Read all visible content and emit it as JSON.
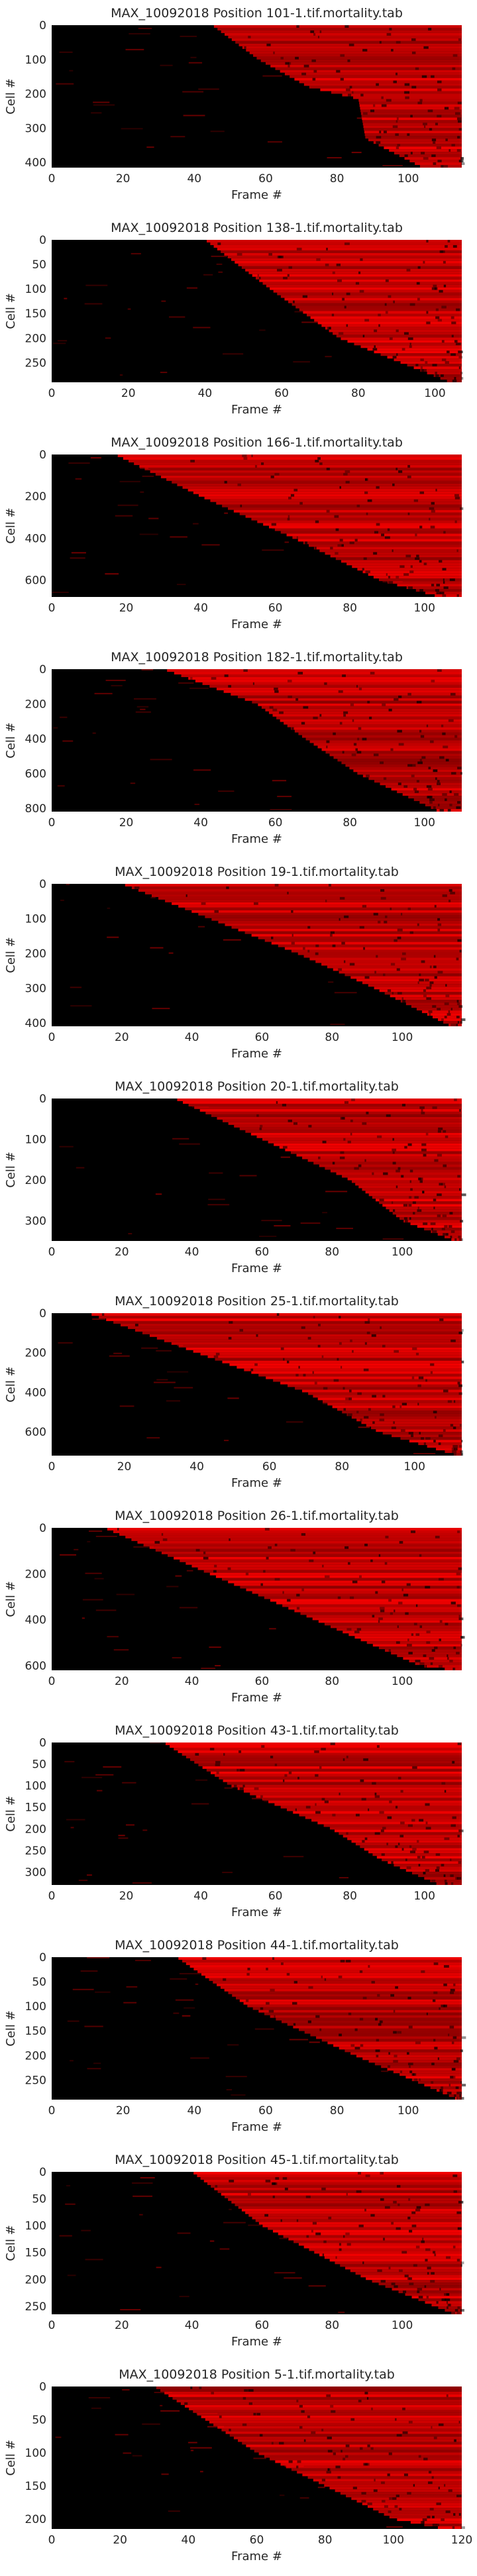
{
  "colors": {
    "background": "#000000",
    "signal": "#ff0000",
    "text": "#262626"
  },
  "chart_data": [
    {
      "type": "heatmap",
      "title": "MAX_10092018 Position 101-1.tif.mortality.tab",
      "xlabel": "Frame #",
      "ylabel": "Cell #",
      "xlim": [
        0,
        115
      ],
      "ylim": [
        415,
        0
      ],
      "x_ticks": [
        0,
        20,
        40,
        60,
        80,
        100
      ],
      "y_ticks": [
        0,
        100,
        200,
        300,
        400
      ],
      "onset_profile": [
        {
          "cell": 0,
          "frame": 45
        },
        {
          "cell": 100,
          "frame": 58
        },
        {
          "cell": 180,
          "frame": 72
        },
        {
          "cell": 215,
          "frame": 86
        },
        {
          "cell": 330,
          "frame": 88
        },
        {
          "cell": 415,
          "frame": 104
        }
      ]
    },
    {
      "type": "heatmap",
      "title": "MAX_10092018 Position 138-1.tif.mortality.tab",
      "xlabel": "Frame #",
      "ylabel": "Cell #",
      "xlim": [
        0,
        107
      ],
      "ylim": [
        290,
        0
      ],
      "x_ticks": [
        0,
        20,
        40,
        60,
        80,
        100
      ],
      "y_ticks": [
        0,
        50,
        100,
        150,
        200,
        250
      ],
      "onset_profile": [
        {
          "cell": 0,
          "frame": 40
        },
        {
          "cell": 100,
          "frame": 57
        },
        {
          "cell": 200,
          "frame": 75
        },
        {
          "cell": 290,
          "frame": 104
        }
      ]
    },
    {
      "type": "heatmap",
      "title": "MAX_10092018 Position 166-1.tif.mortality.tab",
      "xlabel": "Frame #",
      "ylabel": "Cell #",
      "xlim": [
        0,
        110
      ],
      "ylim": [
        680,
        0
      ],
      "x_ticks": [
        0,
        20,
        40,
        60,
        80,
        100
      ],
      "y_ticks": [
        0,
        200,
        400,
        600
      ],
      "onset_profile": [
        {
          "cell": 0,
          "frame": 17
        },
        {
          "cell": 200,
          "frame": 40
        },
        {
          "cell": 400,
          "frame": 65
        },
        {
          "cell": 600,
          "frame": 88
        },
        {
          "cell": 680,
          "frame": 104
        }
      ]
    },
    {
      "type": "heatmap",
      "title": "MAX_10092018 Position 182-1.tif.mortality.tab",
      "xlabel": "Frame #",
      "ylabel": "Cell #",
      "xlim": [
        0,
        110
      ],
      "ylim": [
        820,
        0
      ],
      "x_ticks": [
        0,
        20,
        40,
        60,
        80,
        100
      ],
      "y_ticks": [
        0,
        200,
        400,
        600,
        800
      ],
      "onset_profile": [
        {
          "cell": 0,
          "frame": 30
        },
        {
          "cell": 200,
          "frame": 55
        },
        {
          "cell": 400,
          "frame": 68
        },
        {
          "cell": 600,
          "frame": 82
        },
        {
          "cell": 820,
          "frame": 104
        }
      ]
    },
    {
      "type": "heatmap",
      "title": "MAX_10092018 Position 19-1.tif.mortality.tab",
      "xlabel": "Frame #",
      "ylabel": "Cell #",
      "xlim": [
        0,
        117
      ],
      "ylim": [
        410,
        0
      ],
      "x_ticks": [
        0,
        20,
        40,
        60,
        80,
        100
      ],
      "y_ticks": [
        0,
        100,
        200,
        300,
        400
      ],
      "onset_profile": [
        {
          "cell": 0,
          "frame": 20
        },
        {
          "cell": 100,
          "frame": 45
        },
        {
          "cell": 200,
          "frame": 70
        },
        {
          "cell": 300,
          "frame": 92
        },
        {
          "cell": 410,
          "frame": 114
        }
      ]
    },
    {
      "type": "heatmap",
      "title": "MAX_10092018 Position 20-1.tif.mortality.tab",
      "xlabel": "Frame #",
      "ylabel": "Cell #",
      "xlim": [
        0,
        117
      ],
      "ylim": [
        350,
        0
      ],
      "x_ticks": [
        0,
        20,
        40,
        60,
        80,
        100
      ],
      "y_ticks": [
        0,
        100,
        200,
        300
      ],
      "onset_profile": [
        {
          "cell": 0,
          "frame": 35
        },
        {
          "cell": 100,
          "frame": 60
        },
        {
          "cell": 200,
          "frame": 85
        },
        {
          "cell": 300,
          "frame": 100
        },
        {
          "cell": 350,
          "frame": 115
        }
      ]
    },
    {
      "type": "heatmap",
      "title": "MAX_10092018 Position 25-1.tif.mortality.tab",
      "xlabel": "Frame #",
      "ylabel": "Cell #",
      "xlim": [
        0,
        113
      ],
      "ylim": [
        720,
        0
      ],
      "x_ticks": [
        0,
        20,
        40,
        60,
        80,
        100
      ],
      "y_ticks": [
        0,
        200,
        400,
        600
      ],
      "onset_profile": [
        {
          "cell": 0,
          "frame": 10
        },
        {
          "cell": 200,
          "frame": 40
        },
        {
          "cell": 400,
          "frame": 70
        },
        {
          "cell": 600,
          "frame": 90
        },
        {
          "cell": 720,
          "frame": 112
        }
      ]
    },
    {
      "type": "heatmap",
      "title": "MAX_10092018 Position 26-1.tif.mortality.tab",
      "xlabel": "Frame #",
      "ylabel": "Cell #",
      "xlim": [
        0,
        117
      ],
      "ylim": [
        620,
        0
      ],
      "x_ticks": [
        0,
        20,
        40,
        60,
        80,
        100
      ],
      "y_ticks": [
        0,
        200,
        400,
        600
      ],
      "onset_profile": [
        {
          "cell": 0,
          "frame": 15
        },
        {
          "cell": 200,
          "frame": 45
        },
        {
          "cell": 400,
          "frame": 75
        },
        {
          "cell": 600,
          "frame": 105
        },
        {
          "cell": 620,
          "frame": 115
        }
      ]
    },
    {
      "type": "heatmap",
      "title": "MAX_10092018 Position 43-1.tif.mortality.tab",
      "xlabel": "Frame #",
      "ylabel": "Cell #",
      "xlim": [
        0,
        110
      ],
      "ylim": [
        330,
        0
      ],
      "x_ticks": [
        0,
        20,
        40,
        60,
        80,
        100
      ],
      "y_ticks": [
        0,
        50,
        100,
        150,
        200,
        250,
        300
      ],
      "onset_profile": [
        {
          "cell": 0,
          "frame": 30
        },
        {
          "cell": 100,
          "frame": 48
        },
        {
          "cell": 200,
          "frame": 75
        },
        {
          "cell": 270,
          "frame": 88
        },
        {
          "cell": 330,
          "frame": 104
        }
      ]
    },
    {
      "type": "heatmap",
      "title": "MAX_10092018 Position 44-1.tif.mortality.tab",
      "xlabel": "Frame #",
      "ylabel": "Cell #",
      "xlim": [
        0,
        115
      ],
      "ylim": [
        290,
        0
      ],
      "x_ticks": [
        0,
        20,
        40,
        60,
        80,
        100
      ],
      "y_ticks": [
        0,
        50,
        100,
        150,
        200,
        250
      ],
      "onset_profile": [
        {
          "cell": 0,
          "frame": 35
        },
        {
          "cell": 100,
          "frame": 55
        },
        {
          "cell": 200,
          "frame": 85
        },
        {
          "cell": 290,
          "frame": 114
        }
      ]
    },
    {
      "type": "heatmap",
      "title": "MAX_10092018 Position 45-1.tif.mortality.tab",
      "xlabel": "Frame #",
      "ylabel": "Cell #",
      "xlim": [
        0,
        117
      ],
      "ylim": [
        265,
        0
      ],
      "x_ticks": [
        0,
        20,
        40,
        60,
        80,
        100
      ],
      "y_ticks": [
        0,
        50,
        100,
        150,
        200,
        250
      ],
      "onset_profile": [
        {
          "cell": 0,
          "frame": 40
        },
        {
          "cell": 100,
          "frame": 60
        },
        {
          "cell": 200,
          "frame": 90
        },
        {
          "cell": 265,
          "frame": 115
        }
      ]
    },
    {
      "type": "heatmap",
      "title": "MAX_10092018 Position 5-1.tif.mortality.tab",
      "xlabel": "Frame #",
      "ylabel": "Cell #",
      "xlim": [
        0,
        120
      ],
      "ylim": [
        215,
        0
      ],
      "x_ticks": [
        0,
        20,
        40,
        60,
        80,
        100,
        120
      ],
      "y_ticks": [
        0,
        50,
        100,
        150,
        200
      ],
      "onset_profile": [
        {
          "cell": 0,
          "frame": 30
        },
        {
          "cell": 100,
          "frame": 60
        },
        {
          "cell": 200,
          "frame": 100
        },
        {
          "cell": 215,
          "frame": 115
        }
      ]
    }
  ]
}
